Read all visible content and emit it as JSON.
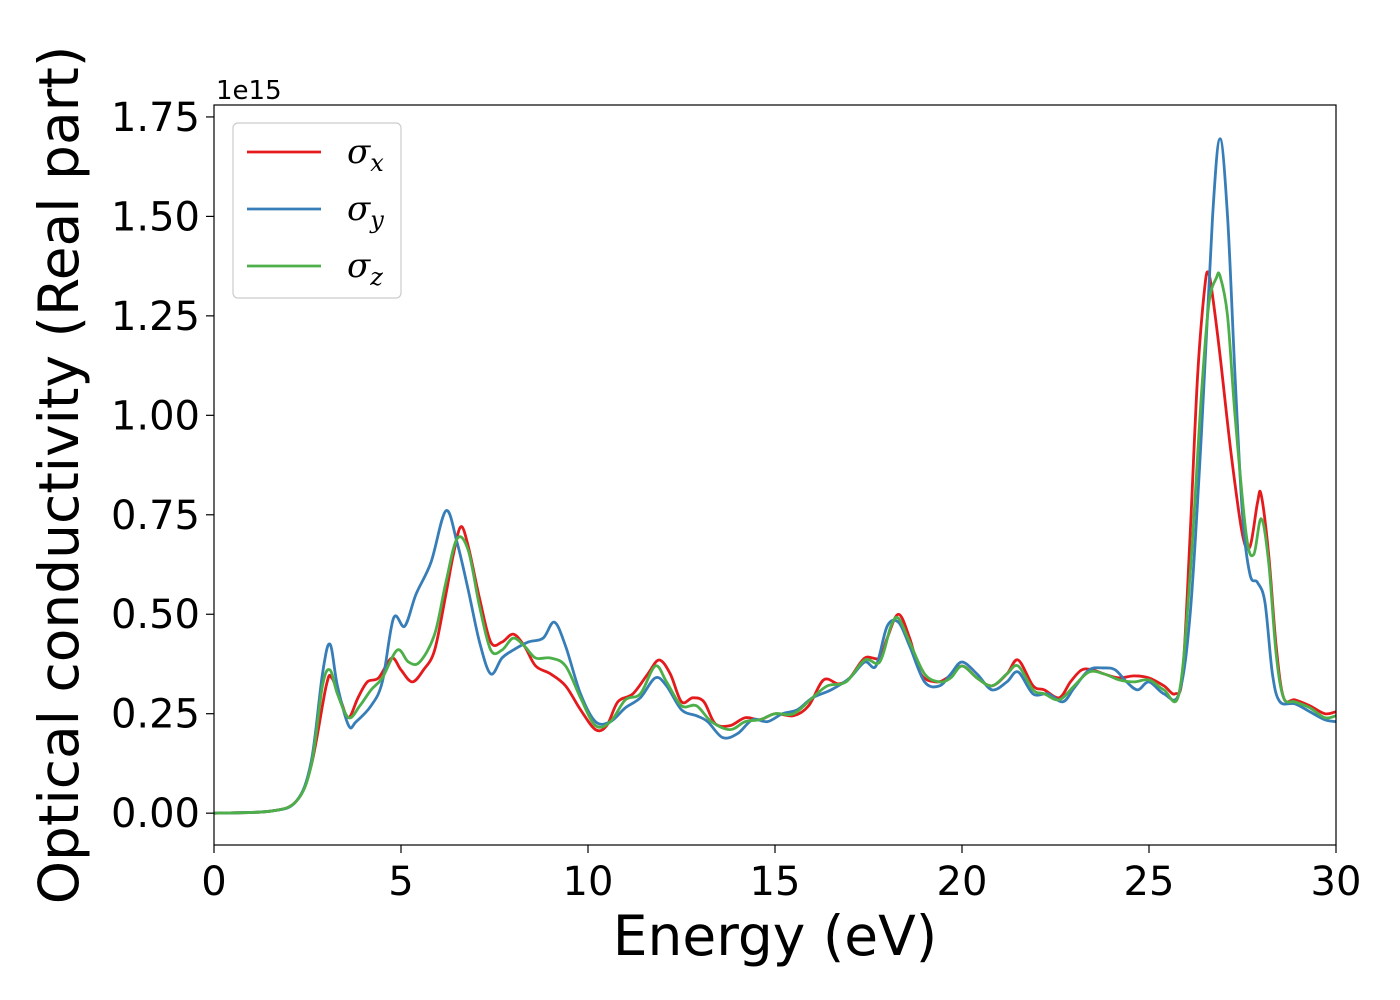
{
  "chart_data": {
    "type": "line",
    "title": "",
    "xlabel": "Energy (eV)",
    "ylabel": "Optical conductivity (Real part)",
    "y_offset_label": "1e15",
    "xlim": [
      0,
      30
    ],
    "ylim": [
      -0.08,
      1.78
    ],
    "x_ticks": [
      0,
      5,
      10,
      15,
      20,
      25,
      30
    ],
    "x_tick_labels": [
      "0",
      "5",
      "10",
      "15",
      "20",
      "25",
      "30"
    ],
    "y_ticks": [
      0.0,
      0.25,
      0.5,
      0.75,
      1.0,
      1.25,
      1.5,
      1.75
    ],
    "y_tick_labels": [
      "0.00",
      "0.25",
      "0.50",
      "0.75",
      "1.00",
      "1.25",
      "1.50",
      "1.75"
    ],
    "grid": false,
    "legend_position": "top-left",
    "series": [
      {
        "name_symbol": "σ",
        "name_sub": "x",
        "color": "#e41a1c",
        "points": [
          [
            0,
            0
          ],
          [
            1.5,
            0.005
          ],
          [
            2.2,
            0.03
          ],
          [
            2.6,
            0.12
          ],
          [
            3.0,
            0.32
          ],
          [
            3.15,
            0.34
          ],
          [
            3.4,
            0.28
          ],
          [
            3.6,
            0.24
          ],
          [
            3.85,
            0.29
          ],
          [
            4.1,
            0.33
          ],
          [
            4.4,
            0.34
          ],
          [
            4.75,
            0.39
          ],
          [
            5.0,
            0.36
          ],
          [
            5.3,
            0.33
          ],
          [
            5.6,
            0.36
          ],
          [
            5.9,
            0.41
          ],
          [
            6.2,
            0.55
          ],
          [
            6.4,
            0.65
          ],
          [
            6.6,
            0.72
          ],
          [
            6.8,
            0.67
          ],
          [
            7.1,
            0.54
          ],
          [
            7.4,
            0.43
          ],
          [
            7.7,
            0.43
          ],
          [
            8.0,
            0.45
          ],
          [
            8.3,
            0.42
          ],
          [
            8.6,
            0.37
          ],
          [
            9.0,
            0.35
          ],
          [
            9.4,
            0.32
          ],
          [
            9.8,
            0.26
          ],
          [
            10.2,
            0.21
          ],
          [
            10.5,
            0.22
          ],
          [
            10.8,
            0.28
          ],
          [
            11.2,
            0.3
          ],
          [
            11.6,
            0.35
          ],
          [
            11.9,
            0.385
          ],
          [
            12.2,
            0.35
          ],
          [
            12.5,
            0.28
          ],
          [
            12.8,
            0.29
          ],
          [
            13.1,
            0.28
          ],
          [
            13.4,
            0.225
          ],
          [
            13.8,
            0.22
          ],
          [
            14.2,
            0.24
          ],
          [
            14.6,
            0.235
          ],
          [
            15.0,
            0.25
          ],
          [
            15.5,
            0.245
          ],
          [
            15.9,
            0.27
          ],
          [
            16.3,
            0.335
          ],
          [
            16.7,
            0.325
          ],
          [
            17.0,
            0.34
          ],
          [
            17.4,
            0.39
          ],
          [
            17.8,
            0.39
          ],
          [
            18.0,
            0.44
          ],
          [
            18.3,
            0.5
          ],
          [
            18.6,
            0.44
          ],
          [
            18.9,
            0.35
          ],
          [
            19.3,
            0.33
          ],
          [
            19.6,
            0.34
          ],
          [
            20.0,
            0.37
          ],
          [
            20.4,
            0.34
          ],
          [
            20.8,
            0.32
          ],
          [
            21.2,
            0.35
          ],
          [
            21.5,
            0.385
          ],
          [
            21.9,
            0.32
          ],
          [
            22.2,
            0.31
          ],
          [
            22.6,
            0.29
          ],
          [
            22.9,
            0.33
          ],
          [
            23.2,
            0.36
          ],
          [
            23.5,
            0.36
          ],
          [
            23.8,
            0.35
          ],
          [
            24.2,
            0.34
          ],
          [
            24.6,
            0.345
          ],
          [
            25.0,
            0.34
          ],
          [
            25.4,
            0.32
          ],
          [
            25.7,
            0.3
          ],
          [
            25.9,
            0.35
          ],
          [
            26.1,
            0.7
          ],
          [
            26.3,
            1.1
          ],
          [
            26.5,
            1.33
          ],
          [
            26.6,
            1.355
          ],
          [
            26.7,
            1.3
          ],
          [
            26.9,
            1.15
          ],
          [
            27.2,
            0.9
          ],
          [
            27.5,
            0.7
          ],
          [
            27.7,
            0.67
          ],
          [
            27.9,
            0.78
          ],
          [
            28.0,
            0.8
          ],
          [
            28.2,
            0.65
          ],
          [
            28.4,
            0.42
          ],
          [
            28.6,
            0.29
          ],
          [
            28.9,
            0.285
          ],
          [
            29.3,
            0.27
          ],
          [
            29.7,
            0.25
          ],
          [
            30.0,
            0.255
          ]
        ]
      },
      {
        "name_symbol": "σ",
        "name_sub": "y",
        "color": "#377eb8",
        "points": [
          [
            0,
            0
          ],
          [
            1.5,
            0.005
          ],
          [
            2.2,
            0.03
          ],
          [
            2.6,
            0.13
          ],
          [
            2.9,
            0.35
          ],
          [
            3.1,
            0.425
          ],
          [
            3.3,
            0.32
          ],
          [
            3.6,
            0.22
          ],
          [
            3.8,
            0.23
          ],
          [
            4.2,
            0.27
          ],
          [
            4.5,
            0.33
          ],
          [
            4.8,
            0.49
          ],
          [
            5.1,
            0.47
          ],
          [
            5.4,
            0.55
          ],
          [
            5.8,
            0.63
          ],
          [
            6.2,
            0.76
          ],
          [
            6.5,
            0.68
          ],
          [
            6.8,
            0.56
          ],
          [
            7.1,
            0.43
          ],
          [
            7.4,
            0.35
          ],
          [
            7.7,
            0.39
          ],
          [
            8.0,
            0.41
          ],
          [
            8.4,
            0.43
          ],
          [
            8.8,
            0.44
          ],
          [
            9.1,
            0.48
          ],
          [
            9.4,
            0.42
          ],
          [
            9.8,
            0.3
          ],
          [
            10.2,
            0.23
          ],
          [
            10.6,
            0.23
          ],
          [
            11.0,
            0.265
          ],
          [
            11.4,
            0.29
          ],
          [
            11.8,
            0.34
          ],
          [
            12.1,
            0.32
          ],
          [
            12.5,
            0.26
          ],
          [
            12.9,
            0.245
          ],
          [
            13.2,
            0.23
          ],
          [
            13.6,
            0.19
          ],
          [
            14.0,
            0.2
          ],
          [
            14.4,
            0.235
          ],
          [
            14.8,
            0.23
          ],
          [
            15.2,
            0.25
          ],
          [
            15.6,
            0.26
          ],
          [
            16.0,
            0.29
          ],
          [
            16.5,
            0.31
          ],
          [
            17.0,
            0.34
          ],
          [
            17.4,
            0.38
          ],
          [
            17.7,
            0.37
          ],
          [
            18.0,
            0.47
          ],
          [
            18.3,
            0.48
          ],
          [
            18.6,
            0.42
          ],
          [
            19.0,
            0.33
          ],
          [
            19.4,
            0.32
          ],
          [
            19.7,
            0.35
          ],
          [
            20.0,
            0.38
          ],
          [
            20.4,
            0.35
          ],
          [
            20.8,
            0.31
          ],
          [
            21.2,
            0.33
          ],
          [
            21.5,
            0.355
          ],
          [
            21.9,
            0.3
          ],
          [
            22.3,
            0.3
          ],
          [
            22.7,
            0.28
          ],
          [
            23.0,
            0.315
          ],
          [
            23.4,
            0.36
          ],
          [
            23.8,
            0.365
          ],
          [
            24.1,
            0.36
          ],
          [
            24.4,
            0.33
          ],
          [
            24.7,
            0.31
          ],
          [
            25.0,
            0.33
          ],
          [
            25.4,
            0.3
          ],
          [
            25.8,
            0.3
          ],
          [
            26.1,
            0.5
          ],
          [
            26.4,
            0.95
          ],
          [
            26.7,
            1.5
          ],
          [
            26.9,
            1.695
          ],
          [
            27.1,
            1.5
          ],
          [
            27.3,
            1.1
          ],
          [
            27.5,
            0.75
          ],
          [
            27.7,
            0.6
          ],
          [
            27.9,
            0.58
          ],
          [
            28.1,
            0.53
          ],
          [
            28.3,
            0.35
          ],
          [
            28.5,
            0.28
          ],
          [
            28.9,
            0.275
          ],
          [
            29.3,
            0.255
          ],
          [
            29.7,
            0.235
          ],
          [
            30.0,
            0.23
          ]
        ]
      },
      {
        "name_symbol": "σ",
        "name_sub": "z",
        "color": "#4daf4a",
        "points": [
          [
            0,
            0
          ],
          [
            1.5,
            0.005
          ],
          [
            2.2,
            0.03
          ],
          [
            2.6,
            0.12
          ],
          [
            2.9,
            0.32
          ],
          [
            3.1,
            0.36
          ],
          [
            3.3,
            0.3
          ],
          [
            3.6,
            0.24
          ],
          [
            3.9,
            0.27
          ],
          [
            4.2,
            0.31
          ],
          [
            4.5,
            0.34
          ],
          [
            4.9,
            0.41
          ],
          [
            5.2,
            0.38
          ],
          [
            5.5,
            0.38
          ],
          [
            5.9,
            0.45
          ],
          [
            6.2,
            0.58
          ],
          [
            6.5,
            0.69
          ],
          [
            6.8,
            0.66
          ],
          [
            7.1,
            0.52
          ],
          [
            7.4,
            0.41
          ],
          [
            7.7,
            0.41
          ],
          [
            8.0,
            0.44
          ],
          [
            8.3,
            0.42
          ],
          [
            8.6,
            0.39
          ],
          [
            9.0,
            0.39
          ],
          [
            9.4,
            0.37
          ],
          [
            9.8,
            0.29
          ],
          [
            10.2,
            0.22
          ],
          [
            10.6,
            0.23
          ],
          [
            11.0,
            0.285
          ],
          [
            11.4,
            0.3
          ],
          [
            11.8,
            0.37
          ],
          [
            12.1,
            0.33
          ],
          [
            12.5,
            0.27
          ],
          [
            12.9,
            0.27
          ],
          [
            13.3,
            0.23
          ],
          [
            13.8,
            0.21
          ],
          [
            14.2,
            0.23
          ],
          [
            14.6,
            0.235
          ],
          [
            15.0,
            0.25
          ],
          [
            15.5,
            0.25
          ],
          [
            16.0,
            0.29
          ],
          [
            16.4,
            0.32
          ],
          [
            16.9,
            0.33
          ],
          [
            17.4,
            0.385
          ],
          [
            17.8,
            0.38
          ],
          [
            18.1,
            0.47
          ],
          [
            18.3,
            0.49
          ],
          [
            18.6,
            0.43
          ],
          [
            19.0,
            0.35
          ],
          [
            19.4,
            0.33
          ],
          [
            19.7,
            0.34
          ],
          [
            20.0,
            0.37
          ],
          [
            20.4,
            0.34
          ],
          [
            20.8,
            0.32
          ],
          [
            21.2,
            0.35
          ],
          [
            21.5,
            0.37
          ],
          [
            21.9,
            0.31
          ],
          [
            22.2,
            0.3
          ],
          [
            22.6,
            0.285
          ],
          [
            23.0,
            0.32
          ],
          [
            23.4,
            0.355
          ],
          [
            23.8,
            0.35
          ],
          [
            24.2,
            0.335
          ],
          [
            24.6,
            0.33
          ],
          [
            25.0,
            0.335
          ],
          [
            25.4,
            0.31
          ],
          [
            25.8,
            0.3
          ],
          [
            26.1,
            0.6
          ],
          [
            26.4,
            1.05
          ],
          [
            26.6,
            1.28
          ],
          [
            26.8,
            1.345
          ],
          [
            26.9,
            1.35
          ],
          [
            27.1,
            1.25
          ],
          [
            27.3,
            1.0
          ],
          [
            27.6,
            0.7
          ],
          [
            27.8,
            0.65
          ],
          [
            28.0,
            0.74
          ],
          [
            28.2,
            0.63
          ],
          [
            28.4,
            0.4
          ],
          [
            28.6,
            0.29
          ],
          [
            28.9,
            0.28
          ],
          [
            29.3,
            0.265
          ],
          [
            29.7,
            0.24
          ],
          [
            30.0,
            0.245
          ]
        ]
      }
    ]
  }
}
